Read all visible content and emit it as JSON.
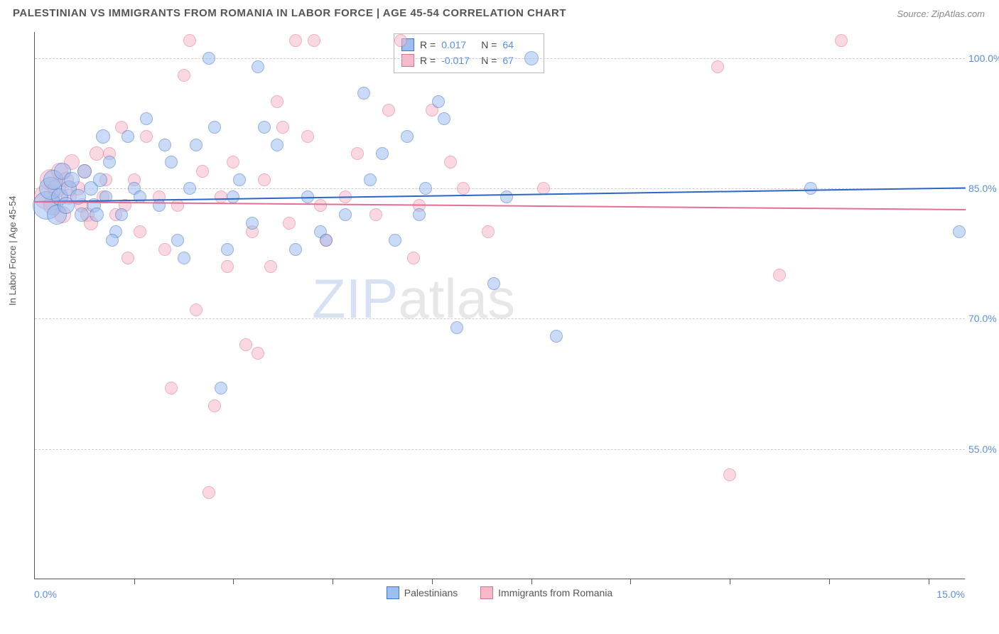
{
  "header": {
    "title": "PALESTINIAN VS IMMIGRANTS FROM ROMANIA IN LABOR FORCE | AGE 45-54 CORRELATION CHART",
    "source": "Source: ZipAtlas.com"
  },
  "chart": {
    "type": "scatter",
    "ylabel": "In Labor Force | Age 45-54",
    "xlim": [
      0,
      15
    ],
    "ylim": [
      40,
      103
    ],
    "x_axis_labels": {
      "left": "0.0%",
      "right": "15.0%"
    },
    "y_ticks": [
      {
        "value": 55,
        "label": "55.0%"
      },
      {
        "value": 70,
        "label": "70.0%"
      },
      {
        "value": 85,
        "label": "85.0%"
      },
      {
        "value": 100,
        "label": "100.0%"
      }
    ],
    "x_tick_positions": [
      1.6,
      3.2,
      4.8,
      6.4,
      8.0,
      9.6,
      11.2,
      12.8,
      14.4
    ],
    "background_color": "#ffffff",
    "grid_color": "#cccccc",
    "marker_radius_base": 9,
    "marker_opacity": 0.55,
    "watermark": "ZIPatlas",
    "series": [
      {
        "name": "Palestinians",
        "fill_color": "#9dbef0",
        "stroke_color": "#3f74c7",
        "trend_color": "#2d66c6",
        "trend": {
          "y_at_xmin": 83.5,
          "y_at_xmax": 85.1
        },
        "R": "0.017",
        "N": "64",
        "points": [
          {
            "x": 0.2,
            "y": 83,
            "s": 20
          },
          {
            "x": 0.25,
            "y": 85,
            "s": 16
          },
          {
            "x": 0.3,
            "y": 86,
            "s": 14
          },
          {
            "x": 0.35,
            "y": 82,
            "s": 14
          },
          {
            "x": 0.4,
            "y": 84,
            "s": 12
          },
          {
            "x": 0.45,
            "y": 87,
            "s": 12
          },
          {
            "x": 0.5,
            "y": 83,
            "s": 12
          },
          {
            "x": 0.55,
            "y": 85,
            "s": 11
          },
          {
            "x": 0.6,
            "y": 86,
            "s": 11
          },
          {
            "x": 0.7,
            "y": 84,
            "s": 11
          },
          {
            "x": 0.75,
            "y": 82,
            "s": 10
          },
          {
            "x": 0.8,
            "y": 87,
            "s": 10
          },
          {
            "x": 0.9,
            "y": 85,
            "s": 10
          },
          {
            "x": 0.95,
            "y": 83,
            "s": 10
          },
          {
            "x": 1.0,
            "y": 82,
            "s": 10
          },
          {
            "x": 1.05,
            "y": 86,
            "s": 10
          },
          {
            "x": 1.1,
            "y": 91,
            "s": 10
          },
          {
            "x": 1.15,
            "y": 84,
            "s": 9
          },
          {
            "x": 1.2,
            "y": 88,
            "s": 9
          },
          {
            "x": 1.3,
            "y": 80,
            "s": 9
          },
          {
            "x": 1.4,
            "y": 82,
            "s": 9
          },
          {
            "x": 1.5,
            "y": 91,
            "s": 9
          },
          {
            "x": 1.6,
            "y": 85,
            "s": 9
          },
          {
            "x": 1.7,
            "y": 84,
            "s": 9
          },
          {
            "x": 1.8,
            "y": 93,
            "s": 9
          },
          {
            "x": 2.0,
            "y": 83,
            "s": 9
          },
          {
            "x": 2.1,
            "y": 90,
            "s": 9
          },
          {
            "x": 2.2,
            "y": 88,
            "s": 9
          },
          {
            "x": 2.3,
            "y": 79,
            "s": 9
          },
          {
            "x": 2.4,
            "y": 77,
            "s": 9
          },
          {
            "x": 2.5,
            "y": 85,
            "s": 9
          },
          {
            "x": 2.6,
            "y": 90,
            "s": 9
          },
          {
            "x": 2.8,
            "y": 100,
            "s": 9
          },
          {
            "x": 2.9,
            "y": 92,
            "s": 9
          },
          {
            "x": 3.0,
            "y": 62,
            "s": 9
          },
          {
            "x": 3.1,
            "y": 78,
            "s": 9
          },
          {
            "x": 3.2,
            "y": 84,
            "s": 9
          },
          {
            "x": 3.3,
            "y": 86,
            "s": 9
          },
          {
            "x": 3.5,
            "y": 81,
            "s": 9
          },
          {
            "x": 3.6,
            "y": 99,
            "s": 9
          },
          {
            "x": 3.7,
            "y": 92,
            "s": 9
          },
          {
            "x": 3.9,
            "y": 90,
            "s": 9
          },
          {
            "x": 4.2,
            "y": 78,
            "s": 9
          },
          {
            "x": 4.4,
            "y": 84,
            "s": 9
          },
          {
            "x": 4.6,
            "y": 80,
            "s": 9
          },
          {
            "x": 4.7,
            "y": 79,
            "s": 9
          },
          {
            "x": 5.0,
            "y": 82,
            "s": 9
          },
          {
            "x": 5.3,
            "y": 96,
            "s": 9
          },
          {
            "x": 5.4,
            "y": 86,
            "s": 9
          },
          {
            "x": 5.6,
            "y": 89,
            "s": 9
          },
          {
            "x": 5.8,
            "y": 79,
            "s": 9
          },
          {
            "x": 6.0,
            "y": 91,
            "s": 9
          },
          {
            "x": 6.2,
            "y": 82,
            "s": 9
          },
          {
            "x": 6.3,
            "y": 85,
            "s": 9
          },
          {
            "x": 6.5,
            "y": 95,
            "s": 9
          },
          {
            "x": 6.6,
            "y": 93,
            "s": 9
          },
          {
            "x": 6.8,
            "y": 69,
            "s": 9
          },
          {
            "x": 7.4,
            "y": 74,
            "s": 9
          },
          {
            "x": 7.6,
            "y": 84,
            "s": 9
          },
          {
            "x": 8.0,
            "y": 100,
            "s": 10
          },
          {
            "x": 8.4,
            "y": 68,
            "s": 9
          },
          {
            "x": 12.5,
            "y": 85,
            "s": 9
          },
          {
            "x": 14.9,
            "y": 80,
            "s": 9
          },
          {
            "x": 1.25,
            "y": 79,
            "s": 9
          }
        ]
      },
      {
        "name": "Immigrants from Romania",
        "fill_color": "#f5b9c9",
        "stroke_color": "#e0708e",
        "trend_color": "#e36f94",
        "trend": {
          "y_at_xmin": 83.5,
          "y_at_xmax": 82.6
        },
        "R": "-0.017",
        "N": "67",
        "points": [
          {
            "x": 0.2,
            "y": 84,
            "s": 18
          },
          {
            "x": 0.25,
            "y": 86,
            "s": 15
          },
          {
            "x": 0.3,
            "y": 83,
            "s": 14
          },
          {
            "x": 0.35,
            "y": 85,
            "s": 13
          },
          {
            "x": 0.4,
            "y": 87,
            "s": 12
          },
          {
            "x": 0.45,
            "y": 82,
            "s": 12
          },
          {
            "x": 0.5,
            "y": 86,
            "s": 11
          },
          {
            "x": 0.55,
            "y": 84,
            "s": 11
          },
          {
            "x": 0.6,
            "y": 88,
            "s": 11
          },
          {
            "x": 0.7,
            "y": 85,
            "s": 10
          },
          {
            "x": 0.75,
            "y": 83,
            "s": 10
          },
          {
            "x": 0.8,
            "y": 87,
            "s": 10
          },
          {
            "x": 0.85,
            "y": 82,
            "s": 10
          },
          {
            "x": 0.9,
            "y": 81,
            "s": 10
          },
          {
            "x": 1.0,
            "y": 89,
            "s": 10
          },
          {
            "x": 1.1,
            "y": 84,
            "s": 9
          },
          {
            "x": 1.2,
            "y": 89,
            "s": 9
          },
          {
            "x": 1.3,
            "y": 82,
            "s": 9
          },
          {
            "x": 1.4,
            "y": 92,
            "s": 9
          },
          {
            "x": 1.45,
            "y": 83,
            "s": 9
          },
          {
            "x": 1.5,
            "y": 77,
            "s": 9
          },
          {
            "x": 1.6,
            "y": 86,
            "s": 9
          },
          {
            "x": 1.7,
            "y": 80,
            "s": 9
          },
          {
            "x": 1.8,
            "y": 91,
            "s": 9
          },
          {
            "x": 2.0,
            "y": 84,
            "s": 9
          },
          {
            "x": 2.1,
            "y": 78,
            "s": 9
          },
          {
            "x": 2.2,
            "y": 62,
            "s": 9
          },
          {
            "x": 2.3,
            "y": 83,
            "s": 9
          },
          {
            "x": 2.4,
            "y": 98,
            "s": 9
          },
          {
            "x": 2.5,
            "y": 102,
            "s": 9
          },
          {
            "x": 2.6,
            "y": 71,
            "s": 9
          },
          {
            "x": 2.7,
            "y": 87,
            "s": 9
          },
          {
            "x": 2.8,
            "y": 50,
            "s": 9
          },
          {
            "x": 2.9,
            "y": 60,
            "s": 9
          },
          {
            "x": 3.0,
            "y": 84,
            "s": 9
          },
          {
            "x": 3.1,
            "y": 76,
            "s": 9
          },
          {
            "x": 3.2,
            "y": 88,
            "s": 9
          },
          {
            "x": 3.4,
            "y": 67,
            "s": 9
          },
          {
            "x": 3.5,
            "y": 80,
            "s": 9
          },
          {
            "x": 3.6,
            "y": 66,
            "s": 9
          },
          {
            "x": 3.7,
            "y": 86,
            "s": 9
          },
          {
            "x": 3.8,
            "y": 76,
            "s": 9
          },
          {
            "x": 3.9,
            "y": 95,
            "s": 9
          },
          {
            "x": 4.0,
            "y": 92,
            "s": 9
          },
          {
            "x": 4.1,
            "y": 81,
            "s": 9
          },
          {
            "x": 4.2,
            "y": 102,
            "s": 9
          },
          {
            "x": 4.4,
            "y": 91,
            "s": 9
          },
          {
            "x": 4.5,
            "y": 102,
            "s": 9
          },
          {
            "x": 4.6,
            "y": 83,
            "s": 9
          },
          {
            "x": 4.7,
            "y": 79,
            "s": 9
          },
          {
            "x": 5.0,
            "y": 84,
            "s": 9
          },
          {
            "x": 5.2,
            "y": 89,
            "s": 9
          },
          {
            "x": 5.5,
            "y": 82,
            "s": 9
          },
          {
            "x": 5.7,
            "y": 94,
            "s": 9
          },
          {
            "x": 5.9,
            "y": 102,
            "s": 9
          },
          {
            "x": 6.1,
            "y": 77,
            "s": 9
          },
          {
            "x": 6.2,
            "y": 83,
            "s": 9
          },
          {
            "x": 6.4,
            "y": 94,
            "s": 9
          },
          {
            "x": 6.7,
            "y": 88,
            "s": 9
          },
          {
            "x": 6.9,
            "y": 85,
            "s": 9
          },
          {
            "x": 7.3,
            "y": 80,
            "s": 9
          },
          {
            "x": 8.2,
            "y": 85,
            "s": 9
          },
          {
            "x": 11.0,
            "y": 99,
            "s": 9
          },
          {
            "x": 11.2,
            "y": 52,
            "s": 9
          },
          {
            "x": 12.0,
            "y": 75,
            "s": 9
          },
          {
            "x": 13.0,
            "y": 102,
            "s": 9
          },
          {
            "x": 1.15,
            "y": 86,
            "s": 9
          }
        ]
      }
    ]
  },
  "legend": {
    "stats_labels": {
      "R": "R =",
      "N": "N ="
    },
    "bottom_items": [
      "Palestinians",
      "Immigrants from Romania"
    ]
  }
}
